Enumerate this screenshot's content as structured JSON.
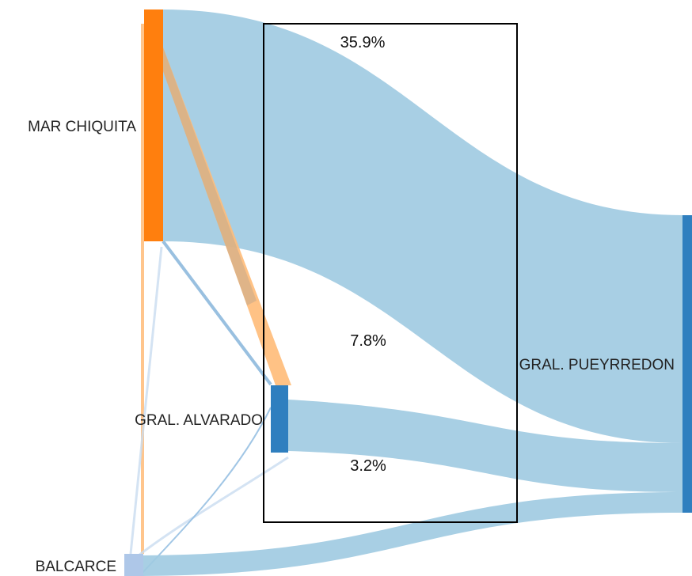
{
  "nodes": {
    "mar_chiquita": {
      "label": "MAR CHIQUITA",
      "color": "#ff7f0e"
    },
    "gral_alvarado": {
      "label": "GRAL. ALVARADO",
      "color": "#2f7fbf"
    },
    "gral_pueyrredon": {
      "label": "GRAL. PUEYRREDON",
      "color": "#2f7fbf"
    },
    "balcarce": {
      "label": "BALCARCE",
      "color": "#aec7e8"
    }
  },
  "flow_colors": {
    "blue": "#9ecae1",
    "orange": "#ffbb78",
    "brown": "#c4a98a"
  },
  "highlight_box": {
    "labels": [
      "35.9%",
      "7.8%",
      "3.2%"
    ]
  }
}
